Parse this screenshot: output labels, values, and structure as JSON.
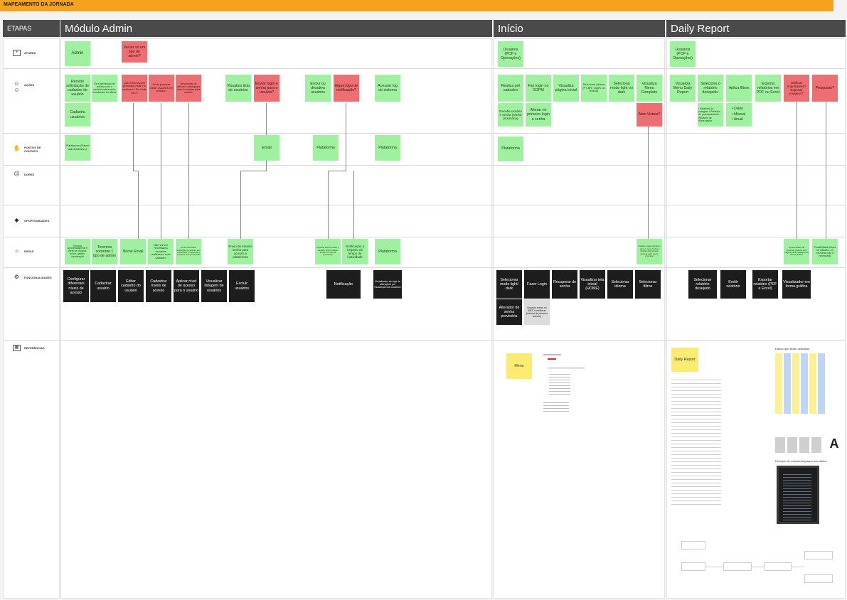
{
  "banner": {
    "title": "MAPEAMENTO DA JORNADA"
  },
  "sections": {
    "etapas": "ETAPAS",
    "admin": "Módulo Admin",
    "inicio": "Início",
    "daily": "Daily Report"
  },
  "rows": [
    {
      "label": "ATORES",
      "icon": "user-box-icon"
    },
    {
      "label": "AÇÕES",
      "icon": "people-icon"
    },
    {
      "label": "PONTOS DE CONTATO",
      "icon": "hand-icon"
    },
    {
      "label": "DORES",
      "icon": "sad-face-icon"
    },
    {
      "label": "OPORTUNIDADES",
      "icon": "diamond-icon"
    },
    {
      "label": "IDEIAS",
      "icon": "lightbulb-icon"
    },
    {
      "label": "FUNCIONALIDADES",
      "icon": "settings-icon"
    },
    {
      "label": "REFERÊNCIAS",
      "icon": "image-icon"
    }
  ],
  "stickies": {
    "admin_actor": "Admin",
    "admin_q1": "Vai ter só um tipo de admin?",
    "a1": "Recebe solicitação de cadastro de usuário",
    "a2": "Se a permissão de acesso com o usuário está errada, recadastrar ou alterar",
    "a3": "Que informações precisam estar no cadastro? De onde vem?",
    "a4": "Pode precisar editar usuários em massa?",
    "a5": "Vai precisar de atribuir a cada grupo nível de acesso para usuário",
    "a6": "Visualiza lista de usuários",
    "a7": "Enviar login e senha para o usuário?",
    "a8": "Exclui ou desativa usuários",
    "a9": "Algum tipo de notificação?",
    "a10": "Acessar log do sistema",
    "a11": "Cadastra usuários",
    "c1": "Plataforma (Painel administrativo)",
    "c2": "Email",
    "c3": "Plataforma",
    "c4": "Plataforma",
    "i1": "Teremos aproximadamente 5 perfis de usuários: admin, gestão, visualização",
    "i2": "Teremos somente 1 tipo de admin",
    "i3": "Nome Email",
    "i4": "Não vai ser necessário usuários realizarem auto cadastro",
    "i5": "Será necessário atribuição de acesso aos conteúdos e sistemas a usuários com permissão",
    "i6": "Envio de email e senha para acesso a plataforma",
    "i7": "Quando admin inserir o usuário será enviado email com senha provisória",
    "i8": "Notificação a respeito de tempo de inatividade",
    "i9": "Plataforma",
    "f1": "Configurar diferentes níveis de acesso",
    "f2": "Cadastrar usuário",
    "f3": "Editar cadastro do usuário",
    "f4": "Cadastrar níveis de acesso",
    "f5": "Aplicar nível de acesso para o usuário",
    "f6": "Visualizar listagem de usuários",
    "f7": "Excluir usuários",
    "f8": "Notificação",
    "f9": "Visualizador de logs de alterações por mudanças dos usuários",
    "in_actor": "Usuários (PCP e Operações)",
    "n1": "Realiza pré cadastro",
    "n2": "Faz login no SGPM",
    "n3": "Visualiza página inicial",
    "n4": "Seleciona idioma (PT-BR, Inglês ou Russo)",
    "n5": "Seleciona modo light ou dark",
    "n6": "Visualiza Menu Completo",
    "n7": "Recebe usuário e senha (senha provisória)",
    "n8": "Alterar no primeiro login a senha",
    "n9": "Abre Ustres?",
    "nc1": "Plataforma",
    "ni1": "Usuários que migraram para o menu Ustres ficarão disponíveis apenas pelo menu principal",
    "nf1": "Selecionar modo light/ dark",
    "nf2": "Fazer Login",
    "nf3": "Recuperar de senha",
    "nf4": "Visualizar tela inicial (HOME)",
    "nf5": "Selecionar idioma",
    "nf6": "Selecionar filtros",
    "nf7": "Alterador de senha provisória",
    "nf8": "Quando entrar no MES considerar (tutorial de primeiro acesso)",
    "nr_menu": "Menu",
    "d_actor": "Usuários (PCP e Operações)",
    "d1": "Visualiza Menu Daily Report",
    "d2": "Seleciona o relatório desejado.",
    "d3": "Aplica filtros",
    "d4": "Exporta relatórios em PDF ou Excel",
    "d5": "Gráficos importantes? Exportar imagens?",
    "d6": "Pesquisar?",
    "d2list": "• Relatório de paragem • Relatório de processamento • Relatório de Alimentação",
    "d3list": [
      "Diário",
      "Mensal",
      "Anual"
    ],
    "di1": "Oportunidade de exportar gráficos com página para avaliação da forma gráfica",
    "di2": "Possibilidade futura de trabalho, no momento não é necessário",
    "df1": "Selecionar relatório desejado",
    "df2": "Emitir relatório",
    "df3": "Exportar relatório (PDF e Excel)",
    "df4": "Visualizador em forma gráfica",
    "dr_daily": "Daily Report",
    "dr_title": "Dados que serão utilizados",
    "dr_struct": "Exemplo de estrutura/agrupar dos dados"
  }
}
